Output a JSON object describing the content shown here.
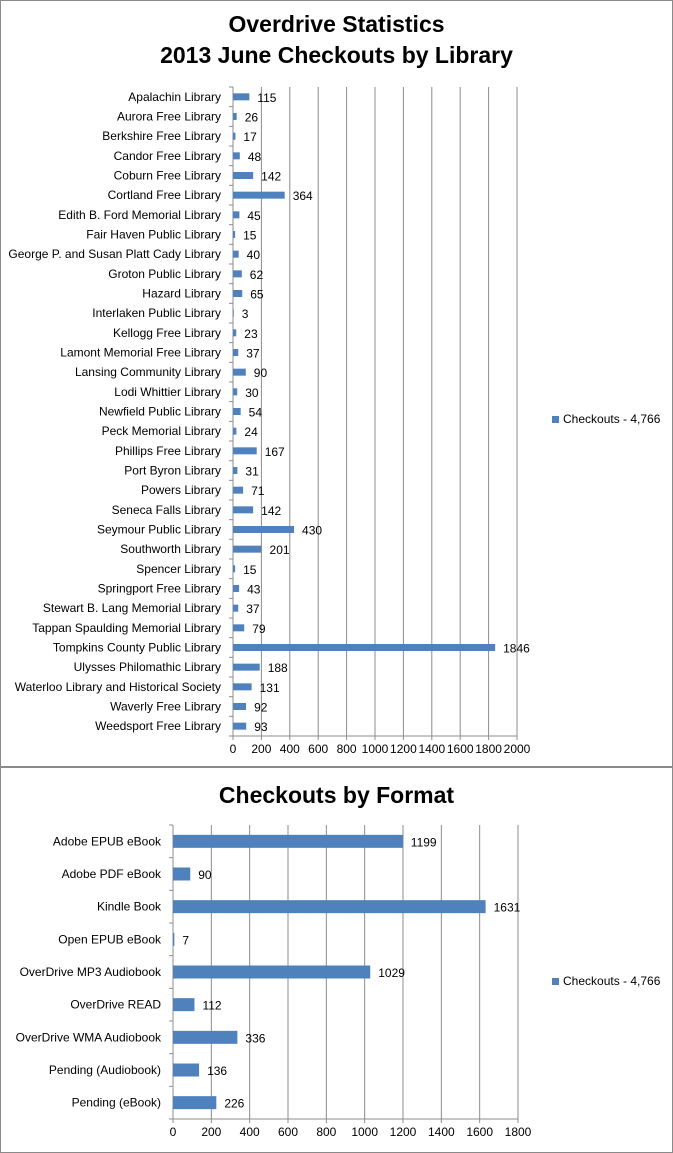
{
  "chart_data": [
    {
      "type": "bar",
      "orientation": "horizontal",
      "title": "Overdrive Statistics",
      "subtitle": "2013 June Checkouts by Library",
      "categories": [
        "Apalachin Library",
        "Aurora Free Library",
        "Berkshire Free Library",
        "Candor Free Library",
        "Coburn Free Library",
        "Cortland Free Library",
        "Edith B. Ford Memorial Library",
        "Fair Haven Public Library",
        "George P. and Susan Platt Cady Library",
        "Groton Public Library",
        "Hazard Library",
        "Interlaken Public Library",
        "Kellogg Free Library",
        "Lamont Memorial Free Library",
        "Lansing Community Library",
        "Lodi Whittier Library",
        "Newfield Public Library",
        "Peck Memorial Library",
        "Phillips Free Library",
        "Port Byron Library",
        "Powers Library",
        "Seneca Falls Library",
        "Seymour Public Library",
        "Southworth Library",
        "Spencer Library",
        "Springport Free Library",
        "Stewart B. Lang Memorial Library",
        "Tappan Spaulding Memorial Library",
        "Tompkins County Public Library",
        "Ulysses Philomathic Library",
        "Waterloo Library and Historical Society",
        "Waverly Free Library",
        "Weedsport Free Library"
      ],
      "series": [
        {
          "name": "Checkouts - 4,766",
          "values": [
            115,
            26,
            17,
            48,
            142,
            364,
            45,
            15,
            40,
            62,
            65,
            3,
            23,
            37,
            90,
            30,
            54,
            24,
            167,
            31,
            71,
            142,
            430,
            201,
            15,
            43,
            37,
            79,
            1846,
            188,
            131,
            92,
            93
          ]
        }
      ],
      "xlim": [
        0,
        2000
      ],
      "xticks": [
        0,
        200,
        400,
        600,
        800,
        1000,
        1200,
        1400,
        1600,
        1800,
        2000
      ],
      "grid": "vertical",
      "legend": "right",
      "color": "#4f81bd"
    },
    {
      "type": "bar",
      "orientation": "horizontal",
      "title": "Checkouts by Format",
      "categories": [
        "Adobe EPUB eBook",
        "Adobe PDF eBook",
        "Kindle Book",
        "Open EPUB eBook",
        "OverDrive MP3 Audiobook",
        "OverDrive READ",
        "OverDrive WMA Audiobook",
        "Pending (Audiobook)",
        "Pending (eBook)"
      ],
      "series": [
        {
          "name": "Checkouts - 4,766",
          "values": [
            1199,
            90,
            1631,
            7,
            1029,
            112,
            336,
            136,
            226
          ]
        }
      ],
      "xlim": [
        0,
        1800
      ],
      "xticks": [
        0,
        200,
        400,
        600,
        800,
        1000,
        1200,
        1400,
        1600,
        1800
      ],
      "grid": "vertical",
      "legend": "right",
      "color": "#4f81bd"
    }
  ]
}
